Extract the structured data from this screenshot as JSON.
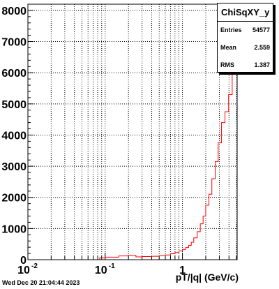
{
  "chart_data": {
    "type": "histogram",
    "x_scale": "log",
    "xlim": [
      0.01,
      5.1
    ],
    "ylim": [
      0,
      8200
    ],
    "grid": true,
    "xlabel": "pT/|q| (GeV/c)",
    "ylabel": "",
    "x_ticks": [
      {
        "value": 0.01,
        "base": "10",
        "exp": "-2"
      },
      {
        "value": 0.1,
        "base": "10",
        "exp": "-1"
      },
      {
        "value": 1,
        "base": "1",
        "exp": ""
      }
    ],
    "y_ticks": [
      {
        "value": 0,
        "label": "0"
      },
      {
        "value": 1000,
        "label": "1000"
      },
      {
        "value": 2000,
        "label": "2000"
      },
      {
        "value": 3000,
        "label": "3000"
      },
      {
        "value": 4000,
        "label": "4000"
      },
      {
        "value": 5000,
        "label": "5000"
      },
      {
        "value": 6000,
        "label": "6000"
      },
      {
        "value": 7000,
        "label": "7000"
      },
      {
        "value": 8000,
        "label": "8000"
      }
    ],
    "line_color": "#ff0000",
    "bins": [
      {
        "x0": 0.01,
        "x1": 0.085,
        "y": 0
      },
      {
        "x0": 0.085,
        "x1": 0.1,
        "y": 60
      },
      {
        "x0": 0.1,
        "x1": 0.15,
        "y": 80
      },
      {
        "x0": 0.15,
        "x1": 0.2,
        "y": 120
      },
      {
        "x0": 0.2,
        "x1": 0.25,
        "y": 140
      },
      {
        "x0": 0.25,
        "x1": 0.3,
        "y": 90
      },
      {
        "x0": 0.3,
        "x1": 0.4,
        "y": 100
      },
      {
        "x0": 0.4,
        "x1": 0.5,
        "y": 110
      },
      {
        "x0": 0.5,
        "x1": 0.6,
        "y": 130
      },
      {
        "x0": 0.6,
        "x1": 0.7,
        "y": 150
      },
      {
        "x0": 0.7,
        "x1": 0.8,
        "y": 190
      },
      {
        "x0": 0.8,
        "x1": 0.9,
        "y": 230
      },
      {
        "x0": 0.9,
        "x1": 1.0,
        "y": 280
      },
      {
        "x0": 1.0,
        "x1": 1.1,
        "y": 330
      },
      {
        "x0": 1.1,
        "x1": 1.2,
        "y": 390
      },
      {
        "x0": 1.2,
        "x1": 1.3,
        "y": 460
      },
      {
        "x0": 1.3,
        "x1": 1.4,
        "y": 560
      },
      {
        "x0": 1.4,
        "x1": 1.55,
        "y": 700
      },
      {
        "x0": 1.55,
        "x1": 1.7,
        "y": 900
      },
      {
        "x0": 1.7,
        "x1": 1.85,
        "y": 1150
      },
      {
        "x0": 1.85,
        "x1": 2.0,
        "y": 1400
      },
      {
        "x0": 2.0,
        "x1": 2.2,
        "y": 1750
      },
      {
        "x0": 2.2,
        "x1": 2.4,
        "y": 2100
      },
      {
        "x0": 2.4,
        "x1": 2.65,
        "y": 2600
      },
      {
        "x0": 2.65,
        "x1": 2.9,
        "y": 3150
      },
      {
        "x0": 2.9,
        "x1": 3.2,
        "y": 3750
      },
      {
        "x0": 3.2,
        "x1": 3.55,
        "y": 4400
      },
      {
        "x0": 3.55,
        "x1": 3.95,
        "y": 4750
      },
      {
        "x0": 3.95,
        "x1": 4.4,
        "y": 5300
      },
      {
        "x0": 4.4,
        "x1": 4.8,
        "y": 6100
      },
      {
        "x0": 4.8,
        "x1": 5.1,
        "y": 7000
      }
    ]
  },
  "stats": {
    "title": "ChiSqXY_y",
    "rows": [
      {
        "label": "Entries",
        "value": "54577"
      },
      {
        "label": "Mean",
        "value": "2.559"
      },
      {
        "label": "RMS",
        "value": "1.387"
      }
    ]
  },
  "timestamp": "Wed Dec 20 21:04:44 2023"
}
